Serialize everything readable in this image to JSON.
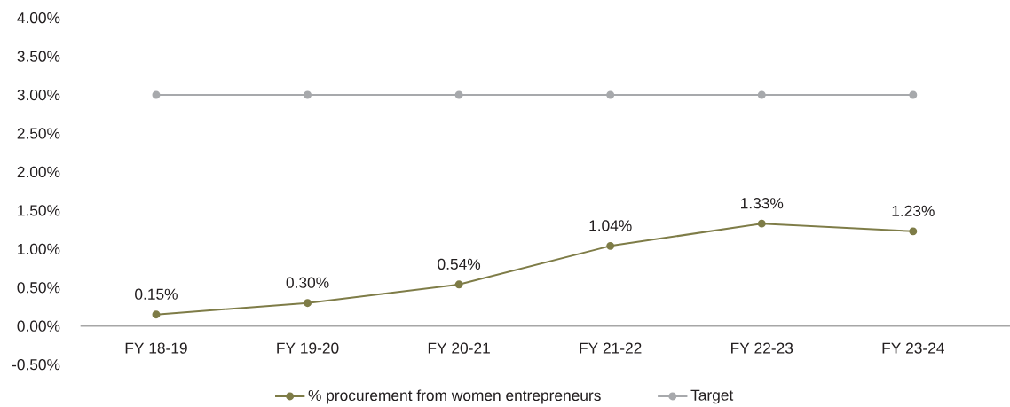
{
  "chart_data": {
    "type": "line",
    "categories": [
      "FY 18-19",
      "FY 19-20",
      "FY 20-21",
      "FY 21-22",
      "FY 22-23",
      "FY 23-24"
    ],
    "series": [
      {
        "name": "% procurement from women entrepreneurs",
        "color": "#7e7c47",
        "values": [
          0.15,
          0.3,
          0.54,
          1.04,
          1.33,
          1.23
        ],
        "value_labels": [
          "0.15%",
          "0.30%",
          "0.54%",
          "1.04%",
          "1.33%",
          "1.23%"
        ]
      },
      {
        "name": "Target",
        "color": "#a7a9ac",
        "values": [
          3,
          3,
          3,
          3,
          3,
          3
        ]
      }
    ],
    "ylim": [
      -0.5,
      4
    ],
    "yticks": [
      {
        "value": -0.5,
        "label": "-0.50%"
      },
      {
        "value": 0,
        "label": "0.00%"
      },
      {
        "value": 0.5,
        "label": "0.50%"
      },
      {
        "value": 1,
        "label": "1.00%"
      },
      {
        "value": 1.5,
        "label": "1.50%"
      },
      {
        "value": 2,
        "label": "2.00%"
      },
      {
        "value": 2.5,
        "label": "2.50%"
      },
      {
        "value": 3,
        "label": "3.00%"
      },
      {
        "value": 3.5,
        "label": "3.50%"
      },
      {
        "value": 4,
        "label": "4.00%"
      }
    ],
    "legend": "bottom",
    "marker": "circle",
    "line_style": "solid"
  }
}
